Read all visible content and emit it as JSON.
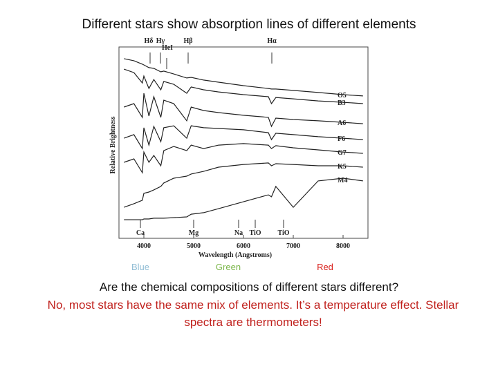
{
  "title": "Different stars show absorption lines of different elements",
  "figure": {
    "type": "line",
    "xlabel": "Wavelength (Angstroms)",
    "ylabel": "Relative Brightness",
    "xlim": [
      3500,
      8500
    ],
    "xticks": [
      4000,
      5000,
      6000,
      7000,
      8000
    ],
    "ylim": [
      0,
      100
    ],
    "x": [
      3600,
      3800,
      3970,
      4000,
      4101,
      4200,
      4340,
      4400,
      4600,
      4861,
      4950,
      5200,
      5500,
      6000,
      6500,
      6563,
      6650,
      7000,
      7500,
      8000,
      8400
    ],
    "series": [
      {
        "name": "O5",
        "color": "#222222",
        "values": [
          93.9,
          92.8,
          91,
          90.6,
          89.2,
          88.8,
          87,
          87.4,
          85.9,
          83.8,
          84.1,
          82.7,
          81.6,
          79.8,
          78.3,
          78,
          78,
          77.3,
          76.2,
          75.1,
          74.4
        ]
      },
      {
        "name": "B3",
        "color": "#222222",
        "values": [
          88.4,
          86.6,
          81.2,
          84.8,
          78.3,
          83,
          77.6,
          82,
          80.5,
          75.8,
          79.1,
          77.6,
          76.5,
          75.1,
          74,
          70.4,
          73.6,
          72.9,
          71.8,
          71.1,
          70.4
        ]
      },
      {
        "name": "A6",
        "color": "#222222",
        "values": [
          68.6,
          70.4,
          63.2,
          75.8,
          63.9,
          74,
          63.2,
          72.2,
          70.4,
          61.4,
          68.6,
          66.8,
          65.7,
          64.3,
          63.2,
          58.5,
          62.8,
          62.1,
          61.4,
          60.6,
          59.9
        ]
      },
      {
        "name": "F6",
        "color": "#222222",
        "values": [
          52.3,
          54.2,
          46.9,
          57.8,
          48.7,
          58.5,
          50.5,
          57.8,
          58.8,
          52.3,
          58.8,
          57.8,
          57.4,
          56.7,
          55.2,
          51.6,
          54.9,
          54.2,
          53.1,
          52.3,
          51.6
        ]
      },
      {
        "name": "G7",
        "color": "#222222",
        "values": [
          39.7,
          41.5,
          34.3,
          45.1,
          39.7,
          43.3,
          37.9,
          45.8,
          48,
          45.8,
          48.7,
          46.9,
          48.7,
          49.5,
          48.7,
          46.9,
          48.4,
          47.3,
          46.2,
          45.1,
          44.4
        ]
      },
      {
        "name": "K5",
        "color": "#222222",
        "values": [
          16.2,
          18.1,
          19.9,
          23.5,
          24.2,
          25.3,
          27.1,
          28.9,
          31.4,
          32.5,
          33.6,
          35,
          37.2,
          38.6,
          39.4,
          37.9,
          39,
          38.6,
          37.9,
          37.9,
          37.2
        ]
      },
      {
        "name": "M4",
        "color": "#222222",
        "values": [
          9.7,
          9.7,
          9.7,
          10.1,
          10.1,
          10.5,
          10.5,
          10.5,
          10.8,
          11.2,
          12.6,
          13.4,
          15.5,
          19.1,
          22.7,
          21.7,
          27.1,
          16.2,
          30,
          31.4,
          30
        ]
      }
    ],
    "top_lines": [
      "Hδ",
      "Hγ",
      "HeI",
      "Hβ",
      "Hα"
    ],
    "bottom_lines": [
      "Ca",
      "Mg",
      "Na",
      "TiO",
      "TiO"
    ]
  },
  "color_labels": [
    {
      "text": "Blue",
      "color": "#8fbcd4"
    },
    {
      "text": "Green",
      "color": "#7ab648"
    },
    {
      "text": "Red",
      "color": "#d9201c"
    }
  ],
  "question": "Are the chemical compositions of different stars different?",
  "answer": [
    "No, most stars have the same mix of elements. It’s a temperature effect. Stellar",
    "spectra are thermometers!"
  ]
}
